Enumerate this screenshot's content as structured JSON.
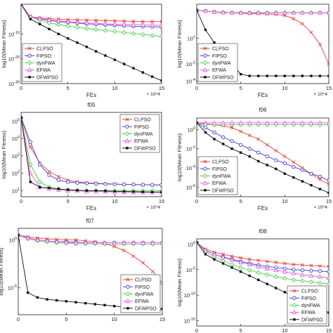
{
  "figure": {
    "series_names": [
      "CLPSO",
      "FIPSO",
      "dynFWA",
      "EFWA",
      "DFWPSO"
    ],
    "series_colors": [
      "#e8413c",
      "#3b3fd6",
      "#47d147",
      "#e35ce0",
      "#111111"
    ],
    "series_markers": [
      "x",
      "circle",
      "diamond",
      "triangle",
      "square"
    ]
  },
  "chart_data": [
    {
      "type": "line",
      "title": "",
      "xlabel": "FEs",
      "ylabel": "log10(Mean Fitness)",
      "x_multiplier": "× 10^4",
      "xlim": [
        0,
        15
      ],
      "ylog": true,
      "ylim_exp": [
        -30,
        2
      ],
      "y_ticks": [
        {
          "exp": -10,
          "label": "10^-10"
        },
        {
          "exp": -20,
          "label": "10^-20"
        },
        {
          "exp": -30,
          "label": "10^-30"
        }
      ],
      "x_ticks": [
        "0",
        "5",
        "10",
        "15"
      ],
      "legend_position": "bottom-left",
      "x": [
        0,
        1,
        2,
        3,
        4,
        5,
        6,
        7,
        8,
        9,
        10,
        11,
        12,
        13,
        14,
        15
      ],
      "series": [
        {
          "name": "CLPSO",
          "log_values": [
            2,
            -3,
            -3.5,
            -3.8,
            -4,
            -4.2,
            -4.3,
            -4.4,
            -4.5,
            -4.6,
            -4.7,
            -4.8,
            -4.9,
            -5,
            -5,
            -5
          ]
        },
        {
          "name": "FIPSO",
          "log_values": [
            2,
            -3,
            -4,
            -4.5,
            -5,
            -5.3,
            -5.6,
            -5.9,
            -6.1,
            -6.3,
            -6.5,
            -6.7,
            -6.9,
            -7,
            -7.1,
            -7.2
          ]
        },
        {
          "name": "dynFWA",
          "log_values": [
            2,
            -3,
            -4.5,
            -5.5,
            -6.2,
            -6.8,
            -7.3,
            -7.8,
            -8.2,
            -8.6,
            -9,
            -9.4,
            -9.8,
            -10.2,
            -10.6,
            -11
          ]
        },
        {
          "name": "EFWA",
          "log_values": [
            2,
            -3,
            -3.8,
            -4.3,
            -4.7,
            -5,
            -5.3,
            -5.5,
            -5.7,
            -5.9,
            -6,
            -6.1,
            -6.2,
            -6.3,
            -6.4,
            -6.5
          ]
        },
        {
          "name": "DFWPSO",
          "log_values": [
            2,
            -4,
            -6,
            -8,
            -10,
            -11.8,
            -13.5,
            -15.2,
            -17,
            -18.7,
            -20.4,
            -22.1,
            -23.8,
            -25.5,
            -27.2,
            -28.8
          ]
        }
      ]
    },
    {
      "type": "line",
      "title": "",
      "xlabel": "FEs",
      "ylabel": "log10(Mean Fitness)",
      "x_multiplier": "× 10^4",
      "xlim": [
        0,
        15
      ],
      "ylog": true,
      "ylim_exp": [
        -4.3,
        5
      ],
      "y_ticks": [
        {
          "exp": 1,
          "label": "10^1"
        },
        {
          "exp": -2,
          "label": "10^-2"
        },
        {
          "exp": -4,
          "label": "10^-4"
        }
      ],
      "x_ticks": [
        "0",
        "5",
        "10",
        "15"
      ],
      "legend_position": "bottom-left",
      "x": [
        0,
        1,
        2,
        3,
        4,
        5,
        6,
        7,
        8,
        9,
        10,
        11,
        12,
        13,
        14,
        15
      ],
      "series": [
        {
          "name": "CLPSO",
          "log_values": [
            4.3,
            4.2,
            4.1,
            4,
            4,
            3.95,
            3.9,
            3.9,
            3.85,
            3.8,
            3.7,
            3.3,
            2.7,
            1.7,
            0.3,
            -2
          ]
        },
        {
          "name": "FIPSO",
          "log_values": [
            4.3,
            4.2,
            4.1,
            4.05,
            4,
            4,
            4,
            4,
            4,
            4,
            4,
            4,
            4,
            4,
            4,
            4
          ]
        },
        {
          "name": "dynFWA",
          "log_values": [
            4.3,
            4.2,
            4.1,
            4.05,
            4,
            4,
            4,
            4,
            4,
            4,
            4,
            4,
            4,
            4,
            4,
            4
          ]
        },
        {
          "name": "EFWA",
          "log_values": [
            4.3,
            4.2,
            4.1,
            4.05,
            4,
            4,
            4,
            4,
            4,
            4,
            4,
            4,
            4,
            4,
            4,
            4
          ]
        },
        {
          "name": "DFWPSO",
          "log_values": [
            4.3,
            2,
            0.5,
            -1,
            -2,
            -3.2,
            -3.4,
            -3.4,
            -3.4,
            -3.4,
            -3.4,
            -3.4,
            -3.4,
            -3.4,
            -3.4,
            -3.4
          ]
        }
      ]
    },
    {
      "type": "line",
      "title": "f05",
      "xlabel": "FEs",
      "ylabel": "log10(Mean Fitness)",
      "x_multiplier": "× 10^4",
      "xlim": [
        0,
        15
      ],
      "ylog": true,
      "ylim_exp": [
        0.65,
        5.5
      ],
      "y_ticks": [
        {
          "exp": 1,
          "label": "10^1"
        },
        {
          "exp": 2,
          "label": "10^2"
        },
        {
          "exp": 3,
          "label": "10^3"
        },
        {
          "exp": 4,
          "label": "10^4"
        },
        {
          "exp": 5,
          "label": "10^5"
        }
      ],
      "x_ticks": [
        "0",
        "5",
        "10",
        "15"
      ],
      "legend_position": "top-right",
      "x": [
        0,
        1,
        2,
        3,
        4,
        5,
        6,
        7,
        8,
        9,
        10,
        11,
        12,
        13,
        14,
        15
      ],
      "series": [
        {
          "name": "CLPSO",
          "log_values": [
            5.2,
            3.5,
            2.6,
            2.1,
            1.8,
            1.6,
            1.5,
            1.45,
            1.42,
            1.4,
            1.38,
            1.36,
            1.35,
            1.34,
            1.33,
            1.32
          ]
        },
        {
          "name": "FIPSO",
          "log_values": [
            5.2,
            3.8,
            2.5,
            1.9,
            1.6,
            1.5,
            1.45,
            1.42,
            1.4,
            1.38,
            1.37,
            1.36,
            1.35,
            1.34,
            1.33,
            1.33
          ]
        },
        {
          "name": "dynFWA",
          "log_values": [
            5.2,
            2.5,
            1.5,
            1.2,
            1.1,
            1.05,
            1.02,
            1,
            1,
            1,
            1,
            1,
            1,
            1,
            1,
            1
          ]
        },
        {
          "name": "EFWA",
          "log_values": [
            5.2,
            2,
            1.2,
            1.1,
            1.05,
            1,
            1,
            0.95,
            0.95,
            0.95,
            0.9,
            0.9,
            0.9,
            0.9,
            0.9,
            0.9
          ]
        },
        {
          "name": "DFWPSO",
          "log_values": [
            5.2,
            1.5,
            1.2,
            1.15,
            1.1,
            1.05,
            1.02,
            1,
            1,
            0.98,
            0.96,
            0.95,
            0.94,
            0.93,
            0.92,
            0.92
          ]
        }
      ]
    },
    {
      "type": "line",
      "title": "f06",
      "xlabel": "FEs",
      "ylabel": "log10(Mean Fitness)",
      "x_multiplier": "× 10^4",
      "xlim": [
        0,
        15
      ],
      "ylog": true,
      "ylim_exp": [
        -7,
        1.2
      ],
      "y_ticks": [
        {
          "exp": 0,
          "label": "10^0"
        },
        {
          "exp": -2,
          "label": "10^-2"
        },
        {
          "exp": -4,
          "label": "10^-4"
        },
        {
          "exp": -6,
          "label": "10^-6"
        }
      ],
      "x_ticks": [
        "0",
        "5",
        "10",
        "15"
      ],
      "legend_position": "bottom-left",
      "x": [
        0,
        1,
        2,
        3,
        4,
        5,
        6,
        7,
        8,
        9,
        10,
        11,
        12,
        13,
        14,
        15
      ],
      "series": [
        {
          "name": "CLPSO",
          "log_values": [
            0.7,
            0.6,
            0.5,
            0.4,
            0.2,
            -0.2,
            -0.6,
            -1,
            -1.6,
            -2.2,
            -2.8,
            -3.4,
            -4,
            -4.6,
            -5.2,
            -5.7
          ]
        },
        {
          "name": "FIPSO",
          "log_values": [
            0.7,
            0.2,
            -0.3,
            -0.8,
            -1.2,
            -1.6,
            -2,
            -2.4,
            -2.8,
            -3.2,
            -3.5,
            -3.9,
            -4.2,
            -4.6,
            -4.9,
            -5.3
          ]
        },
        {
          "name": "dynFWA",
          "log_values": [
            0.7,
            0.5,
            0.5,
            0.5,
            0.5,
            0.5,
            0.5,
            0.5,
            0.5,
            0.5,
            0.5,
            0.5,
            0.5,
            0.5,
            0.5,
            0.5
          ]
        },
        {
          "name": "EFWA",
          "log_values": [
            0.7,
            0.7,
            0.7,
            0.7,
            0.7,
            0.7,
            0.7,
            0.7,
            0.7,
            0.7,
            0.7,
            0.7,
            0.7,
            0.7,
            0.7,
            0.7
          ]
        },
        {
          "name": "DFWPSO",
          "log_values": [
            0.7,
            -0.3,
            -1,
            -1.5,
            -2,
            -2.4,
            -2.8,
            -3.3,
            -3.7,
            -4.1,
            -4.6,
            -5,
            -5.4,
            -5.8,
            -6.2,
            -6.6
          ]
        }
      ]
    },
    {
      "type": "line",
      "title": "f07",
      "xlabel": "",
      "ylabel": "log10(Mean Fitness)",
      "x_multiplier": "",
      "xlim": [
        0,
        15
      ],
      "ylog": true,
      "ylim_exp": [
        -7.8,
        1.2
      ],
      "y_ticks": [
        {
          "exp": 0,
          "label": "10^0"
        },
        {
          "exp": -5,
          "label": "10^-5"
        }
      ],
      "x_ticks": [
        "0",
        "5",
        "10",
        "15"
      ],
      "legend_position": "bottom-right",
      "x": [
        0,
        1,
        2,
        3,
        4,
        5,
        6,
        7,
        8,
        9,
        10,
        11,
        12,
        13,
        14,
        15
      ],
      "series": [
        {
          "name": "CLPSO",
          "log_values": [
            0.5,
            0.3,
            0.2,
            0.1,
            0.05,
            0,
            0,
            -0.1,
            -0.2,
            -0.4,
            -0.7,
            -1.1,
            -1.7,
            -2.4,
            -3.3,
            -4.5
          ]
        },
        {
          "name": "FIPSO",
          "log_values": [
            0.5,
            0.2,
            0,
            -0.1,
            -0.2,
            -0.2,
            -0.25,
            -0.3,
            -0.3,
            -0.3,
            -0.3,
            -0.3,
            -0.3,
            -0.3,
            -0.3,
            -0.3
          ]
        },
        {
          "name": "dynFWA",
          "log_values": [
            0.5,
            0.1,
            -0.1,
            -0.2,
            -0.3,
            -0.35,
            -0.4,
            -0.4,
            -0.4,
            -0.45,
            -0.45,
            -0.45,
            -0.45,
            -0.45,
            -0.45,
            -0.45
          ]
        },
        {
          "name": "EFWA",
          "log_values": [
            0.5,
            0.2,
            0,
            -0.1,
            -0.2,
            -0.25,
            -0.3,
            -0.3,
            -0.3,
            -0.3,
            -0.3,
            -0.3,
            -0.3,
            -0.3,
            -0.3,
            -0.3
          ]
        },
        {
          "name": "DFWPSO",
          "log_values": [
            0.5,
            -5.5,
            -6,
            -6.2,
            -6.3,
            -6.4,
            -6.5,
            -6.6,
            -6.7,
            -6.8,
            -6.9,
            -7,
            -7.05,
            -7.1,
            -7.15,
            -7.2
          ]
        }
      ]
    },
    {
      "type": "line",
      "title": "f08",
      "xlabel": "",
      "ylabel": "log10(Mean Fitness)",
      "x_multiplier": "",
      "xlim": [
        0,
        15
      ],
      "ylog": true,
      "ylim_exp": [
        -16,
        1
      ],
      "y_ticks": [
        {
          "exp": 0,
          "label": "10^0"
        },
        {
          "exp": -5,
          "label": "10^-5"
        },
        {
          "exp": -10,
          "label": "10^-10"
        },
        {
          "exp": -15,
          "label": "10^-15"
        }
      ],
      "x_ticks": [
        "0",
        "5",
        "10",
        "15"
      ],
      "legend_position": "bottom-right",
      "x": [
        0,
        1,
        2,
        3,
        4,
        5,
        6,
        7,
        8,
        9,
        10,
        11,
        12,
        13,
        14,
        15
      ],
      "series": [
        {
          "name": "CLPSO",
          "log_values": [
            0.3,
            -1,
            -1.6,
            -2,
            -2.4,
            -2.7,
            -3,
            -3.2,
            -3.4,
            -3.6,
            -3.8,
            -4,
            -4.1,
            -4.2,
            -4.3,
            -4.4
          ]
        },
        {
          "name": "FIPSO",
          "log_values": [
            0.3,
            -1.3,
            -2,
            -2.5,
            -3,
            -3.4,
            -3.8,
            -4.1,
            -4.4,
            -4.6,
            -4.8,
            -5,
            -5.1,
            -5.2,
            -5.3,
            -5.4
          ]
        },
        {
          "name": "dynFWA",
          "log_values": [
            0.3,
            -1.5,
            -2.5,
            -3.3,
            -4,
            -4.6,
            -5.1,
            -5.6,
            -6,
            -6.4,
            -6.7,
            -7,
            -7.2,
            -7.4,
            -7.6,
            -7.8
          ]
        },
        {
          "name": "EFWA",
          "log_values": [
            0.3,
            -1.2,
            -2,
            -2.6,
            -3.1,
            -3.6,
            -4,
            -4.4,
            -4.8,
            -5.1,
            -5.4,
            -5.7,
            -6,
            -6.2,
            -6.4,
            -6.6
          ]
        },
        {
          "name": "DFWPSO",
          "log_values": [
            0.3,
            -2,
            -3,
            -3.8,
            -4.6,
            -5.4,
            -6.2,
            -7,
            -7.8,
            -8.6,
            -9.4,
            -10.2,
            -11,
            -11.8,
            -12.6,
            -13.4
          ]
        }
      ]
    }
  ]
}
